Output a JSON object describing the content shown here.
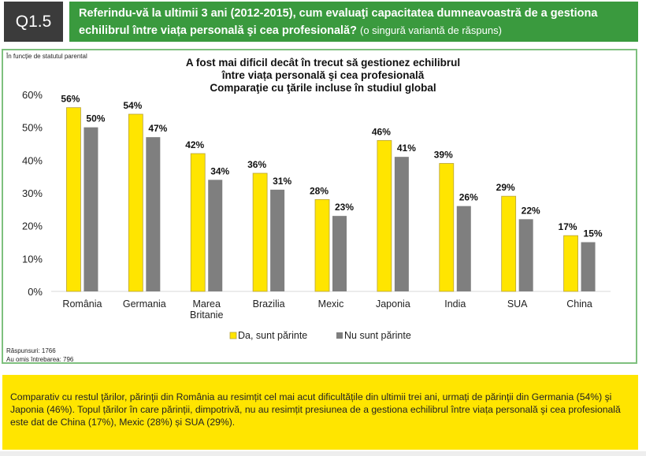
{
  "header": {
    "question_id": "Q1.5",
    "question_text": "Referindu-vă la ultimii 3 ani (2012-2015), cum evaluaţi capacitatea dumneavoastră de a gestiona echilibrul între viața personală şi cea profesională?",
    "question_hint": "(o singură variantă de răspuns)"
  },
  "segment_label": "În funcție de statutul parental",
  "footnotes": {
    "responses": "Răspunsuri: 1766",
    "skipped": "Au omis întrebarea: 796"
  },
  "colors": {
    "header_green": "#3a9a3e",
    "frame_green": "#7ec07e",
    "parent_yellow": "#ffe500",
    "nonparent_gray": "#7f7f7f",
    "conclusion_yellow": "#ffe500"
  },
  "conclusion": "Comparativ cu restul ţărilor, părinţii din România au resimțit cel mai acut dificultățile din ultimii trei ani, urmați de părinţii din Germania (54%) şi Japonia (46%). Topul țărilor în care părinții, dimpotrivă, nu au resimțit presiunea de a gestiona echilibrul între viața personală şi cea profesională este dat de China (17%), Mexic (28%) și SUA (29%).",
  "chart_data": {
    "type": "bar",
    "title_lines": [
      "A fost mai dificil decât în trecut să gestionez echilibrul",
      "între viața personală şi cea profesională",
      "Comparaţie cu ţările incluse în studiul global"
    ],
    "xlabel": "",
    "ylabel": "",
    "ylim": [
      0,
      60
    ],
    "yticks": [
      "0%",
      "10%",
      "20%",
      "30%",
      "40%",
      "50%",
      "60%"
    ],
    "ytick_values": [
      0,
      10,
      20,
      30,
      40,
      50,
      60
    ],
    "grid": false,
    "legend_position": "bottom",
    "categories": [
      [
        "România"
      ],
      [
        "Germania"
      ],
      [
        "Marea",
        "Britanie"
      ],
      [
        "Brazilia"
      ],
      [
        "Mexic"
      ],
      [
        "Japonia"
      ],
      [
        "India"
      ],
      [
        "SUA"
      ],
      [
        "China"
      ]
    ],
    "series": [
      {
        "name": "Da, sunt părinte",
        "color": "#ffe500",
        "values": [
          56,
          54,
          42,
          36,
          28,
          46,
          39,
          29,
          17
        ],
        "labels": [
          "56%",
          "54%",
          "42%",
          "36%",
          "28%",
          "46%",
          "39%",
          "29%",
          "17%"
        ]
      },
      {
        "name": "Nu sunt părinte",
        "color": "#7f7f7f",
        "values": [
          50,
          47,
          34,
          31,
          23,
          41,
          26,
          22,
          15
        ],
        "labels": [
          "50%",
          "47%",
          "34%",
          "31%",
          "23%",
          "41%",
          "26%",
          "22%",
          "15%"
        ]
      }
    ]
  }
}
